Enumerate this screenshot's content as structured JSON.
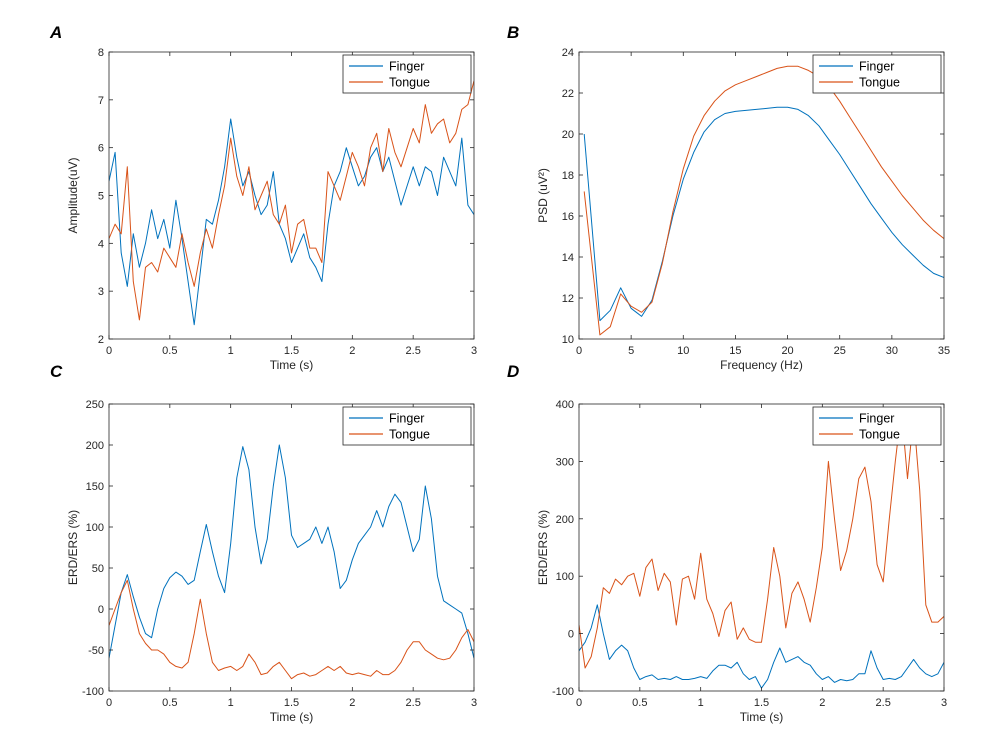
{
  "colors": {
    "finger": "#0072BD",
    "tongue": "#D95319",
    "axis": "#262626"
  },
  "chart_data": [
    {
      "panel": "A",
      "type": "line",
      "xlabel": "Time (s)",
      "ylabel": "Amplitude(uV)",
      "xlim": [
        0,
        3
      ],
      "ylim": [
        2,
        8
      ],
      "xticks": [
        0,
        0.5,
        1,
        1.5,
        2,
        2.5,
        3
      ],
      "yticks": [
        2,
        3,
        4,
        5,
        6,
        7,
        8
      ],
      "legend": {
        "position": "top-right"
      },
      "series": [
        {
          "name": "Finger",
          "color": "#0072BD",
          "x": [
            0,
            0.05,
            0.1,
            0.15,
            0.2,
            0.25,
            0.3,
            0.35,
            0.4,
            0.45,
            0.5,
            0.55,
            0.6,
            0.65,
            0.7,
            0.75,
            0.8,
            0.85,
            0.9,
            0.95,
            1,
            1.05,
            1.1,
            1.15,
            1.2,
            1.25,
            1.3,
            1.35,
            1.4,
            1.45,
            1.5,
            1.55,
            1.6,
            1.65,
            1.7,
            1.75,
            1.8,
            1.85,
            1.9,
            1.95,
            2,
            2.05,
            2.1,
            2.15,
            2.2,
            2.25,
            2.3,
            2.35,
            2.4,
            2.45,
            2.5,
            2.55,
            2.6,
            2.65,
            2.7,
            2.75,
            2.8,
            2.85,
            2.9,
            2.95,
            3
          ],
          "y": [
            5.3,
            5.9,
            3.8,
            3.1,
            4.2,
            3.5,
            4.0,
            4.7,
            4.1,
            4.5,
            3.9,
            4.9,
            4.1,
            3.2,
            2.3,
            3.4,
            4.5,
            4.4,
            4.9,
            5.6,
            6.6,
            5.8,
            5.2,
            5.5,
            5.0,
            4.6,
            4.8,
            5.5,
            4.4,
            4.1,
            3.6,
            3.9,
            4.2,
            3.7,
            3.5,
            3.2,
            4.4,
            5.2,
            5.5,
            6.0,
            5.6,
            5.2,
            5.4,
            5.8,
            6.0,
            5.5,
            5.8,
            5.3,
            4.8,
            5.2,
            5.6,
            5.2,
            5.6,
            5.5,
            5.0,
            5.8,
            5.5,
            5.2,
            6.2,
            4.8,
            4.6
          ]
        },
        {
          "name": "Tongue",
          "color": "#D95319",
          "x": [
            0,
            0.05,
            0.1,
            0.15,
            0.2,
            0.25,
            0.3,
            0.35,
            0.4,
            0.45,
            0.5,
            0.55,
            0.6,
            0.65,
            0.7,
            0.75,
            0.8,
            0.85,
            0.9,
            0.95,
            1,
            1.05,
            1.1,
            1.15,
            1.2,
            1.25,
            1.3,
            1.35,
            1.4,
            1.45,
            1.5,
            1.55,
            1.6,
            1.65,
            1.7,
            1.75,
            1.8,
            1.85,
            1.9,
            1.95,
            2,
            2.05,
            2.1,
            2.15,
            2.2,
            2.25,
            2.3,
            2.35,
            2.4,
            2.45,
            2.5,
            2.55,
            2.6,
            2.65,
            2.7,
            2.75,
            2.8,
            2.85,
            2.9,
            2.95,
            3
          ],
          "y": [
            4.1,
            4.4,
            4.2,
            5.6,
            3.2,
            2.4,
            3.5,
            3.6,
            3.4,
            3.9,
            3.7,
            3.5,
            4.2,
            3.6,
            3.1,
            3.8,
            4.3,
            3.9,
            4.6,
            5.2,
            6.2,
            5.4,
            5.0,
            5.6,
            4.7,
            5.0,
            5.3,
            4.6,
            4.4,
            4.8,
            3.8,
            4.4,
            4.5,
            3.9,
            3.9,
            3.6,
            5.5,
            5.2,
            4.9,
            5.4,
            5.9,
            5.6,
            5.2,
            6.0,
            6.3,
            5.5,
            6.4,
            5.9,
            5.6,
            6.0,
            6.4,
            6.1,
            6.9,
            6.3,
            6.5,
            6.6,
            6.1,
            6.3,
            6.8,
            6.9,
            7.4
          ]
        }
      ]
    },
    {
      "panel": "B",
      "type": "line",
      "xlabel": "Frequency (Hz)",
      "ylabel": "PSD (uV²)",
      "xlim": [
        0,
        35
      ],
      "ylim": [
        10,
        24
      ],
      "xticks": [
        0,
        5,
        10,
        15,
        20,
        25,
        30,
        35
      ],
      "yticks": [
        10,
        12,
        14,
        16,
        18,
        20,
        22,
        24
      ],
      "legend": {
        "position": "top-right"
      },
      "series": [
        {
          "name": "Finger",
          "color": "#0072BD",
          "x": [
            0.5,
            2,
            3,
            4,
            5,
            6,
            7,
            8,
            9,
            10,
            11,
            12,
            13,
            14,
            15,
            16,
            17,
            18,
            19,
            20,
            21,
            22,
            23,
            24,
            25,
            26,
            27,
            28,
            29,
            30,
            31,
            32,
            33,
            34,
            35
          ],
          "y": [
            20.0,
            10.9,
            11.4,
            12.5,
            11.5,
            11.1,
            11.9,
            13.8,
            16.0,
            17.8,
            19.1,
            20.1,
            20.7,
            21.0,
            21.1,
            21.15,
            21.2,
            21.25,
            21.3,
            21.3,
            21.2,
            20.9,
            20.4,
            19.7,
            19.0,
            18.2,
            17.4,
            16.6,
            15.9,
            15.2,
            14.6,
            14.1,
            13.6,
            13.2,
            13.0
          ]
        },
        {
          "name": "Tongue",
          "color": "#D95319",
          "x": [
            0.5,
            2,
            3,
            4,
            5,
            6,
            7,
            8,
            9,
            10,
            11,
            12,
            13,
            14,
            15,
            16,
            17,
            18,
            19,
            20,
            21,
            22,
            23,
            24,
            25,
            26,
            27,
            28,
            29,
            30,
            31,
            32,
            33,
            34,
            35
          ],
          "y": [
            17.2,
            10.2,
            10.6,
            12.2,
            11.6,
            11.3,
            11.8,
            13.7,
            16.2,
            18.3,
            19.9,
            20.9,
            21.6,
            22.1,
            22.4,
            22.6,
            22.8,
            23.0,
            23.2,
            23.3,
            23.3,
            23.1,
            22.8,
            22.3,
            21.6,
            20.8,
            20.0,
            19.2,
            18.4,
            17.7,
            17.0,
            16.4,
            15.8,
            15.3,
            14.9
          ]
        }
      ]
    },
    {
      "panel": "C",
      "type": "line",
      "xlabel": "Time (s)",
      "ylabel": "ERD/ERS (%)",
      "xlim": [
        0,
        3
      ],
      "ylim": [
        -100,
        250
      ],
      "xticks": [
        0,
        0.5,
        1,
        1.5,
        2,
        2.5,
        3
      ],
      "yticks": [
        -100,
        -50,
        0,
        50,
        100,
        150,
        200,
        250
      ],
      "legend": {
        "position": "top-right"
      },
      "series": [
        {
          "name": "Finger",
          "color": "#0072BD",
          "x": [
            0,
            0.05,
            0.1,
            0.15,
            0.2,
            0.25,
            0.3,
            0.35,
            0.4,
            0.45,
            0.5,
            0.55,
            0.6,
            0.65,
            0.7,
            0.75,
            0.8,
            0.85,
            0.9,
            0.95,
            1,
            1.05,
            1.1,
            1.15,
            1.2,
            1.25,
            1.3,
            1.35,
            1.4,
            1.45,
            1.5,
            1.55,
            1.6,
            1.65,
            1.7,
            1.75,
            1.8,
            1.85,
            1.9,
            1.95,
            2,
            2.05,
            2.1,
            2.15,
            2.2,
            2.25,
            2.3,
            2.35,
            2.4,
            2.45,
            2.5,
            2.55,
            2.6,
            2.65,
            2.7,
            2.75,
            2.8,
            2.85,
            2.9,
            2.95,
            3
          ],
          "y": [
            -60,
            -20,
            20,
            42,
            15,
            -10,
            -30,
            -35,
            0,
            25,
            38,
            45,
            40,
            30,
            35,
            70,
            103,
            70,
            40,
            20,
            80,
            160,
            198,
            170,
            100,
            55,
            85,
            150,
            200,
            160,
            90,
            75,
            80,
            85,
            100,
            80,
            100,
            70,
            25,
            35,
            60,
            80,
            90,
            100,
            120,
            100,
            125,
            140,
            130,
            100,
            70,
            85,
            150,
            110,
            40,
            10,
            5,
            0,
            -5,
            -30,
            -60
          ]
        },
        {
          "name": "Tongue",
          "color": "#D95319",
          "x": [
            0,
            0.05,
            0.1,
            0.15,
            0.2,
            0.25,
            0.3,
            0.35,
            0.4,
            0.45,
            0.5,
            0.55,
            0.6,
            0.65,
            0.7,
            0.75,
            0.8,
            0.85,
            0.9,
            0.95,
            1,
            1.05,
            1.1,
            1.15,
            1.2,
            1.25,
            1.3,
            1.35,
            1.4,
            1.45,
            1.5,
            1.55,
            1.6,
            1.65,
            1.7,
            1.75,
            1.8,
            1.85,
            1.9,
            1.95,
            2,
            2.05,
            2.1,
            2.15,
            2.2,
            2.25,
            2.3,
            2.35,
            2.4,
            2.45,
            2.5,
            2.55,
            2.6,
            2.65,
            2.7,
            2.75,
            2.8,
            2.85,
            2.9,
            2.95,
            3
          ],
          "y": [
            -20,
            0,
            20,
            35,
            0,
            -30,
            -42,
            -50,
            -50,
            -55,
            -65,
            -70,
            -72,
            -65,
            -30,
            12,
            -30,
            -65,
            -75,
            -72,
            -70,
            -75,
            -70,
            -55,
            -65,
            -80,
            -78,
            -70,
            -65,
            -75,
            -85,
            -80,
            -78,
            -82,
            -80,
            -75,
            -70,
            -75,
            -70,
            -78,
            -80,
            -78,
            -80,
            -82,
            -75,
            -80,
            -80,
            -75,
            -65,
            -50,
            -40,
            -40,
            -50,
            -55,
            -60,
            -62,
            -60,
            -50,
            -35,
            -25,
            -40
          ]
        }
      ]
    },
    {
      "panel": "D",
      "type": "line",
      "xlabel": "Time (s)",
      "ylabel": "ERD/ERS (%)",
      "xlim": [
        0,
        3
      ],
      "ylim": [
        -100,
        400
      ],
      "xticks": [
        0,
        0.5,
        1,
        1.5,
        2,
        2.5,
        3
      ],
      "yticks": [
        -100,
        0,
        100,
        200,
        300,
        400
      ],
      "legend": {
        "position": "top-right"
      },
      "series": [
        {
          "name": "Finger",
          "color": "#0072BD",
          "x": [
            0,
            0.05,
            0.1,
            0.15,
            0.2,
            0.25,
            0.3,
            0.35,
            0.4,
            0.45,
            0.5,
            0.55,
            0.6,
            0.65,
            0.7,
            0.75,
            0.8,
            0.85,
            0.9,
            0.95,
            1,
            1.05,
            1.1,
            1.15,
            1.2,
            1.25,
            1.3,
            1.35,
            1.4,
            1.45,
            1.5,
            1.55,
            1.6,
            1.65,
            1.7,
            1.75,
            1.8,
            1.85,
            1.9,
            1.95,
            2,
            2.05,
            2.1,
            2.15,
            2.2,
            2.25,
            2.3,
            2.35,
            2.4,
            2.45,
            2.5,
            2.55,
            2.6,
            2.65,
            2.7,
            2.75,
            2.8,
            2.85,
            2.9,
            2.95,
            3
          ],
          "y": [
            -30,
            -15,
            10,
            50,
            0,
            -45,
            -30,
            -20,
            -30,
            -60,
            -80,
            -75,
            -72,
            -80,
            -78,
            -80,
            -75,
            -80,
            -80,
            -78,
            -75,
            -78,
            -65,
            -55,
            -55,
            -60,
            -50,
            -70,
            -80,
            -75,
            -95,
            -80,
            -50,
            -25,
            -50,
            -45,
            -40,
            -50,
            -55,
            -70,
            -80,
            -75,
            -85,
            -80,
            -82,
            -80,
            -70,
            -70,
            -30,
            -60,
            -80,
            -78,
            -80,
            -75,
            -60,
            -45,
            -60,
            -70,
            -75,
            -70,
            -50
          ]
        },
        {
          "name": "Tongue",
          "color": "#D95319",
          "x": [
            0,
            0.05,
            0.1,
            0.15,
            0.2,
            0.25,
            0.3,
            0.35,
            0.4,
            0.45,
            0.5,
            0.55,
            0.6,
            0.65,
            0.7,
            0.75,
            0.8,
            0.85,
            0.9,
            0.95,
            1,
            1.05,
            1.1,
            1.15,
            1.2,
            1.25,
            1.3,
            1.35,
            1.4,
            1.45,
            1.5,
            1.55,
            1.6,
            1.65,
            1.7,
            1.75,
            1.8,
            1.85,
            1.9,
            1.95,
            2,
            2.05,
            2.1,
            2.15,
            2.2,
            2.25,
            2.3,
            2.35,
            2.4,
            2.45,
            2.5,
            2.55,
            2.6,
            2.65,
            2.7,
            2.75,
            2.8,
            2.85,
            2.9,
            2.95,
            3
          ],
          "y": [
            15,
            -60,
            -40,
            10,
            80,
            70,
            95,
            85,
            100,
            105,
            65,
            115,
            130,
            75,
            105,
            90,
            15,
            95,
            100,
            60,
            140,
            60,
            35,
            -5,
            40,
            55,
            -10,
            10,
            -10,
            -15,
            -15,
            60,
            150,
            100,
            10,
            70,
            90,
            60,
            20,
            80,
            150,
            300,
            200,
            110,
            145,
            200,
            270,
            290,
            230,
            120,
            90,
            200,
            300,
            390,
            270,
            380,
            250,
            50,
            20,
            20,
            30
          ]
        }
      ]
    }
  ]
}
